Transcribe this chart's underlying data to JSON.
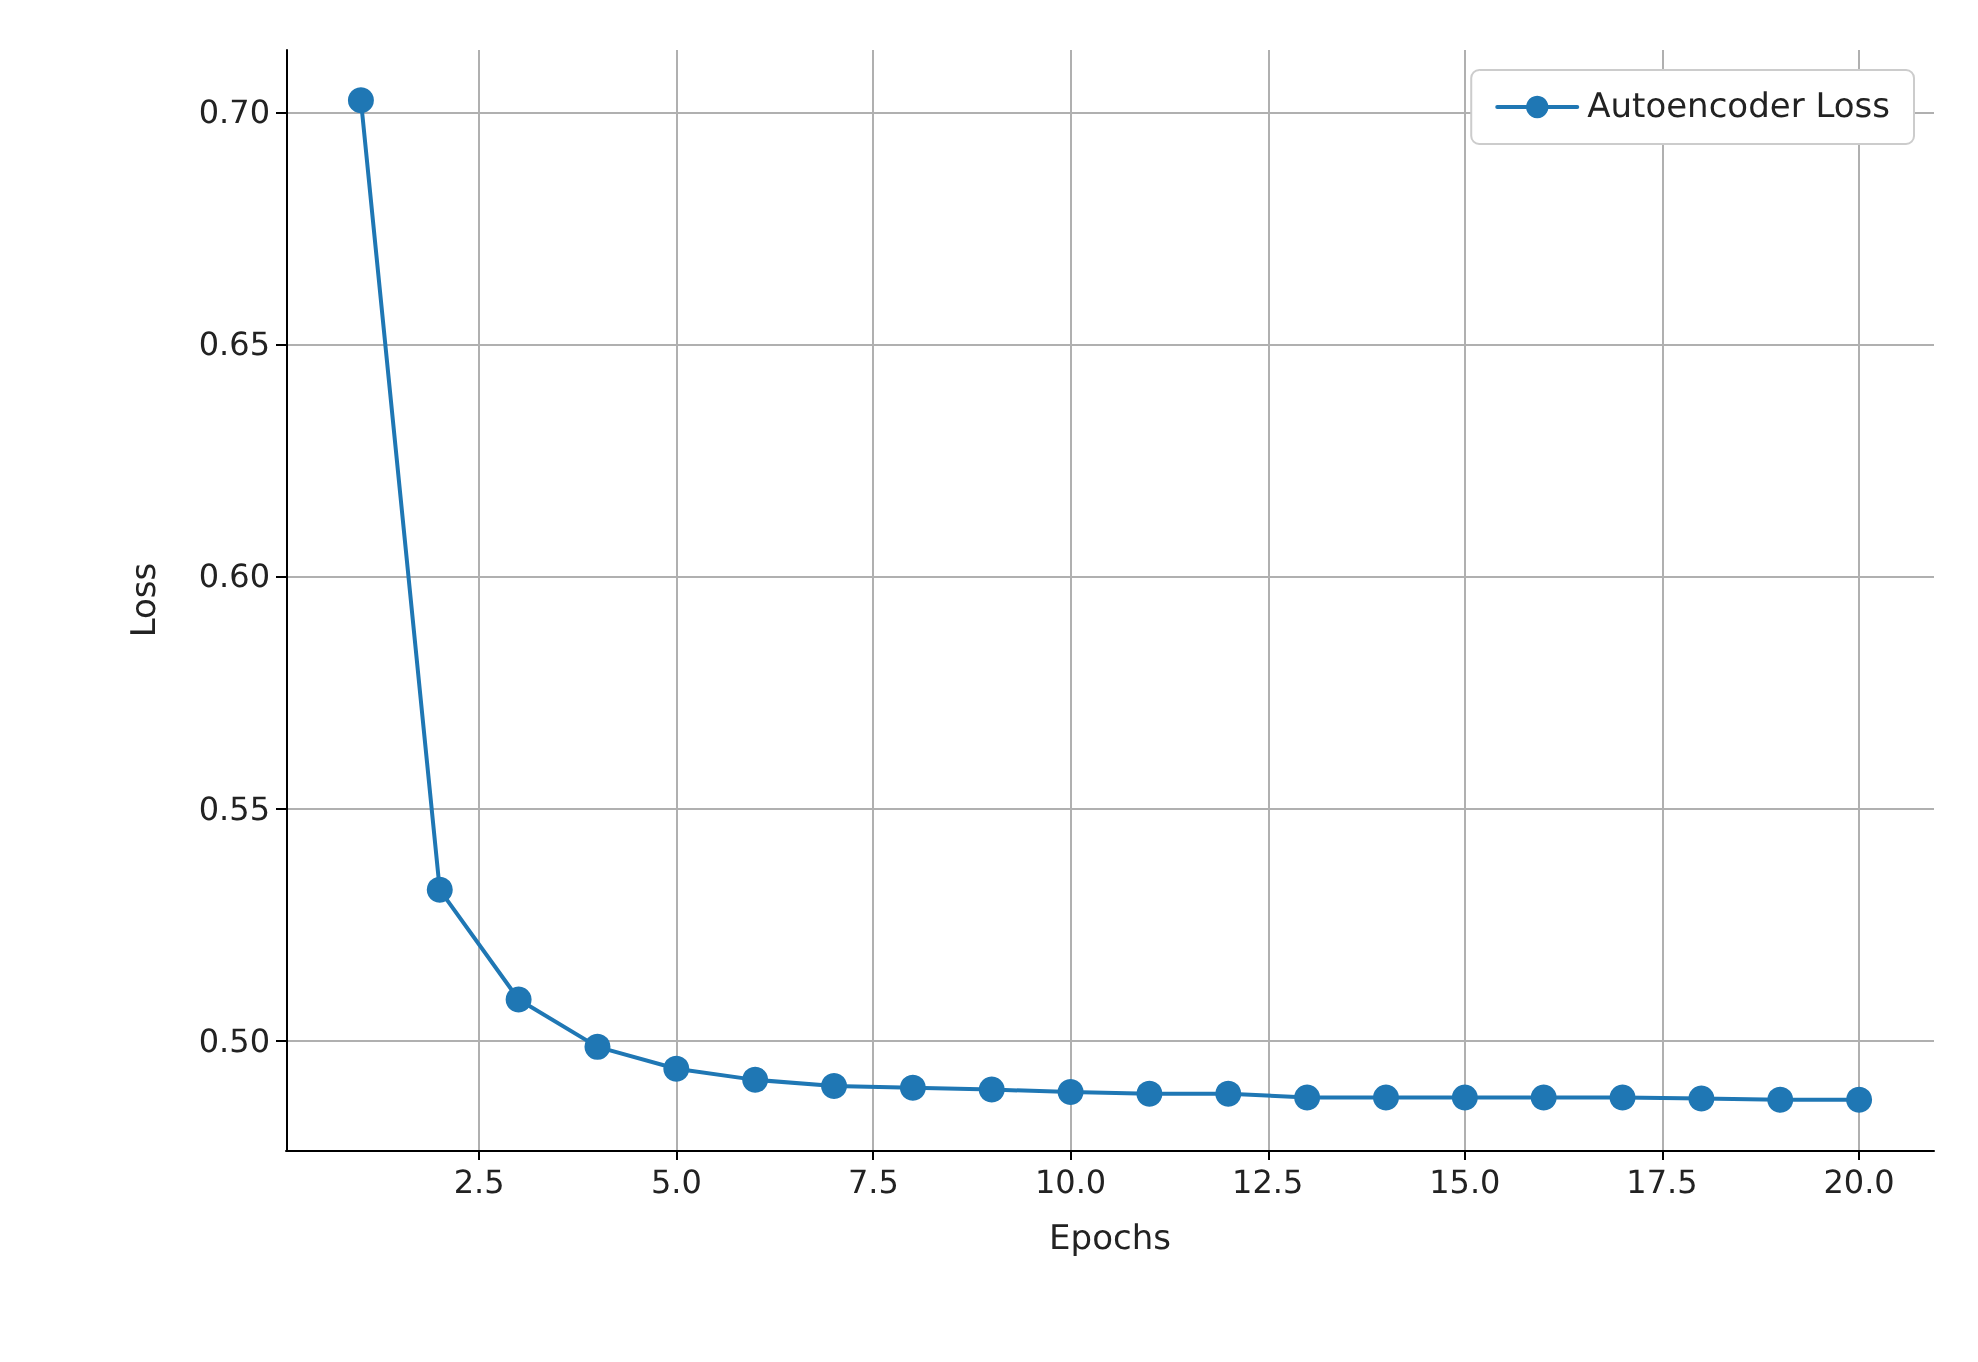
{
  "chart_data": {
    "type": "line",
    "xlabel": "Epochs",
    "ylabel": "Loss",
    "x": [
      1,
      2,
      3,
      4,
      5,
      6,
      7,
      8,
      9,
      10,
      11,
      12,
      13,
      14,
      15,
      16,
      17,
      18,
      19,
      20
    ],
    "series": [
      {
        "name": "Autoencoder Loss",
        "color": "#1f77b4",
        "values": [
          0.7025,
          0.5325,
          0.5089,
          0.4987,
          0.494,
          0.4916,
          0.4903,
          0.4899,
          0.4895,
          0.489,
          0.4886,
          0.4886,
          0.4878,
          0.4878,
          0.4878,
          0.4878,
          0.4878,
          0.4876,
          0.4873,
          0.4873
        ]
      }
    ],
    "xlim": [
      0.05,
      20.95
    ],
    "ylim": [
      0.4765,
      0.7133
    ],
    "xticks": [
      {
        "value": 2.5,
        "label": "2.5"
      },
      {
        "value": 5,
        "label": "5.0"
      },
      {
        "value": 7.5,
        "label": "7.5"
      },
      {
        "value": 10,
        "label": "10.0"
      },
      {
        "value": 12.5,
        "label": "12.5"
      },
      {
        "value": 15,
        "label": "15.0"
      },
      {
        "value": 17.5,
        "label": "17.5"
      },
      {
        "value": 20,
        "label": "20.0"
      }
    ],
    "yticks": [
      {
        "value": 0.5,
        "label": "0.50"
      },
      {
        "value": 0.55,
        "label": "0.55"
      },
      {
        "value": 0.6,
        "label": "0.60"
      },
      {
        "value": 0.65,
        "label": "0.65"
      },
      {
        "value": 0.7,
        "label": "0.70"
      }
    ],
    "grid": true,
    "legend": "top right",
    "marker": "circle",
    "line_style": "solid"
  }
}
